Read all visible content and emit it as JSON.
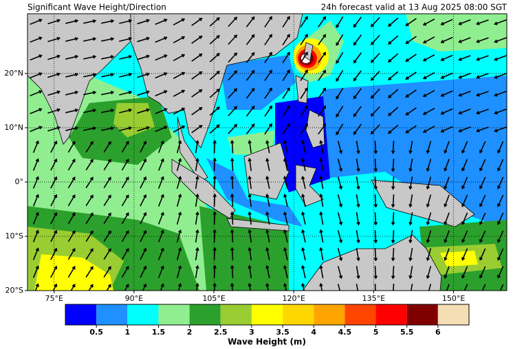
{
  "title": "Significant Wave Height/Direction",
  "subtitle": "24h forecast valid at 13 Aug 2025 08:00 SGT",
  "map": {
    "xlim": [
      70,
      160
    ],
    "ylim": [
      -20,
      31
    ],
    "xticks": [
      {
        "value": 75,
        "label": "75°E"
      },
      {
        "value": 90,
        "label": "90°E"
      },
      {
        "value": 105,
        "label": "105°E"
      },
      {
        "value": 120,
        "label": "120°E"
      },
      {
        "value": 135,
        "label": "135°E"
      },
      {
        "value": 150,
        "label": "150°E"
      }
    ],
    "yticks": [
      {
        "value": 20,
        "label": "20°N"
      },
      {
        "value": 10,
        "label": "10°N"
      },
      {
        "value": 0,
        "label": "0°"
      },
      {
        "value": -10,
        "label": "10°S"
      },
      {
        "value": -20,
        "label": "20°S"
      }
    ]
  },
  "colorbar": {
    "label": "Wave Height (m)",
    "colors": [
      "#0000ff",
      "#1e90ff",
      "#00ffff",
      "#90ee90",
      "#2ca02c",
      "#9acd32",
      "#ffff00",
      "#ffd700",
      "#ffa500",
      "#ff4500",
      "#ff0000",
      "#800000",
      "#f5deb3"
    ],
    "ticks": [
      0.5,
      1,
      1.5,
      2,
      2.5,
      3,
      3.5,
      4,
      4.5,
      5,
      5.5,
      6
    ]
  }
}
